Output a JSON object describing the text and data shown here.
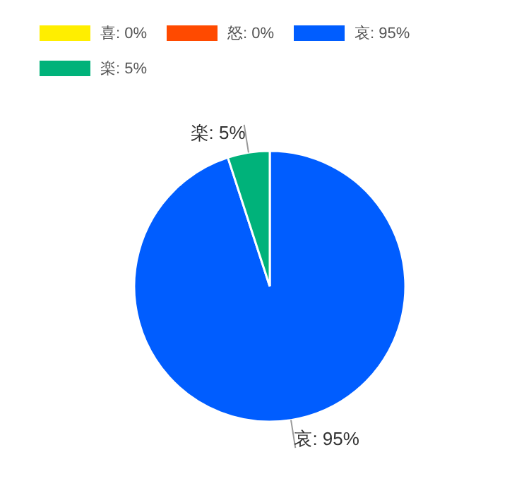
{
  "chart_data": {
    "type": "pie",
    "categories": [
      "喜",
      "怒",
      "哀",
      "楽"
    ],
    "values": [
      0,
      0,
      95,
      5
    ],
    "value_labels": [
      "0%",
      "0%",
      "95%",
      "5%"
    ],
    "colors": [
      "#ffee00",
      "#ff4a00",
      "#005dff",
      "#00b27a"
    ],
    "legend": "top left",
    "data_labels": true
  }
}
